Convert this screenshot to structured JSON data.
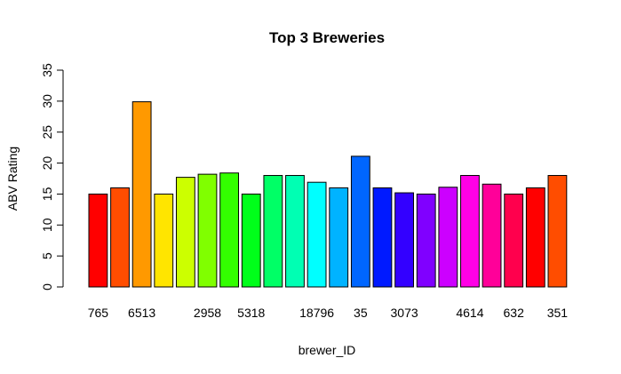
{
  "chart_data": {
    "type": "bar",
    "title": "Top 3 Breweries",
    "xlabel": "brewer_ID",
    "ylabel": "ABV Rating",
    "ylim": [
      0,
      35
    ],
    "yticks": [
      0,
      5,
      10,
      15,
      20,
      25,
      30,
      35
    ],
    "grid": false,
    "legend": "none",
    "bars": [
      {
        "label": "765",
        "value": 15.0,
        "color": "#ff0000"
      },
      {
        "label": "",
        "value": 16.0,
        "color": "#ff4d00"
      },
      {
        "label": "6513",
        "value": 29.9,
        "color": "#ff9900"
      },
      {
        "label": "",
        "value": 15.0,
        "color": "#ffe500"
      },
      {
        "label": "",
        "value": 17.7,
        "color": "#ccff00"
      },
      {
        "label": "2958",
        "value": 18.2,
        "color": "#80ff00"
      },
      {
        "label": "",
        "value": 18.4,
        "color": "#33ff00"
      },
      {
        "label": "5318",
        "value": 15.0,
        "color": "#00ff1a"
      },
      {
        "label": "",
        "value": 18.0,
        "color": "#00ff66"
      },
      {
        "label": "",
        "value": 18.0,
        "color": "#00ffb3"
      },
      {
        "label": "18796",
        "value": 16.9,
        "color": "#00ffff"
      },
      {
        "label": "",
        "value": 16.0,
        "color": "#00b3ff"
      },
      {
        "label": "35",
        "value": 21.1,
        "color": "#0066ff"
      },
      {
        "label": "",
        "value": 16.0,
        "color": "#001aff"
      },
      {
        "label": "3073",
        "value": 15.2,
        "color": "#3300ff"
      },
      {
        "label": "",
        "value": 15.0,
        "color": "#8000ff"
      },
      {
        "label": "",
        "value": 16.1,
        "color": "#cc00ff"
      },
      {
        "label": "4614",
        "value": 18.0,
        "color": "#ff00e6"
      },
      {
        "label": "",
        "value": 16.6,
        "color": "#ff0099"
      },
      {
        "label": "632",
        "value": 15.0,
        "color": "#ff004d"
      },
      {
        "label": "",
        "value": 16.0,
        "color": "#ff0000"
      },
      {
        "label": "351",
        "value": 18.0,
        "color": "#ff4d00"
      }
    ]
  }
}
